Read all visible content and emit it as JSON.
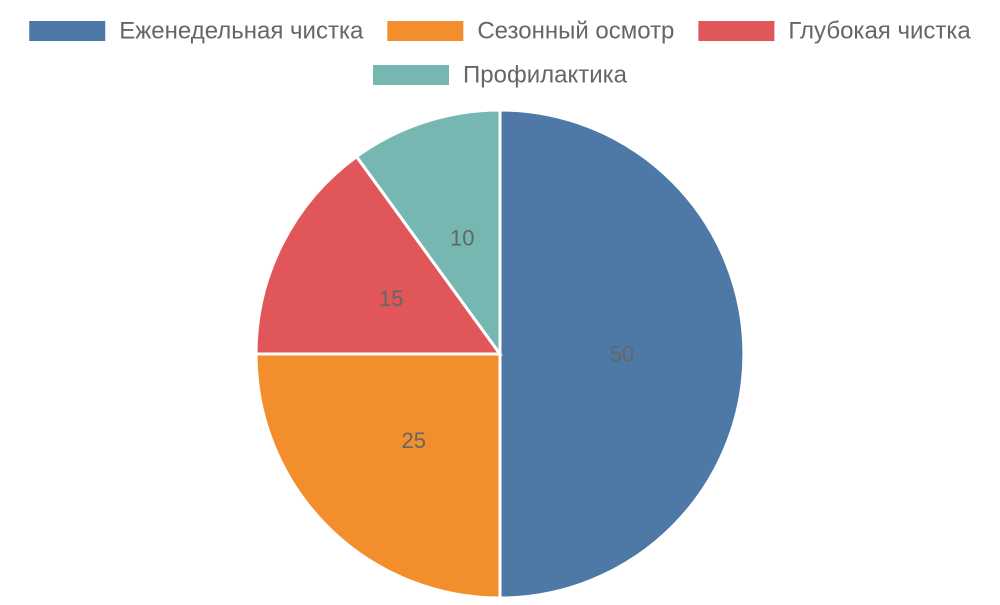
{
  "chart_data": {
    "type": "pie",
    "title": "",
    "legend_position": "top",
    "categories": [
      "Еженедельная чистка",
      "Сезонный осмотр",
      "Глубокая чистка",
      "Профилактика"
    ],
    "values": [
      50,
      25,
      15,
      10
    ],
    "data_labels": [
      "50",
      "25",
      "15",
      "10"
    ],
    "colors": [
      "#4e79a7",
      "#f28e2b",
      "#e15759",
      "#76b7b2"
    ],
    "label_color": "#666666",
    "slice_border_color": "#ffffff"
  }
}
